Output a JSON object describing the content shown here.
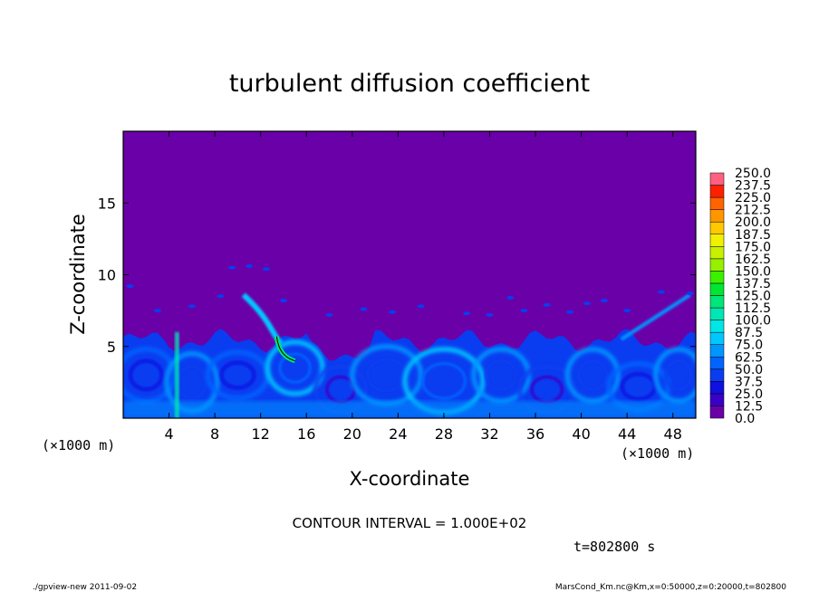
{
  "chart_data": {
    "type": "heatmap",
    "title": "turbulent diffusion coefficient",
    "xlabel": "X-coordinate",
    "ylabel": "Z-coordinate",
    "x_unit_label": "(×1000 m)",
    "y_unit_label": "(×1000 m)",
    "xlim": [
      0,
      50
    ],
    "ylim": [
      0,
      20
    ],
    "x_ticks": [
      4,
      8,
      12,
      16,
      20,
      24,
      28,
      32,
      36,
      40,
      44,
      48
    ],
    "y_ticks": [
      5,
      10,
      15
    ],
    "grid": false,
    "colorbar": {
      "levels": [
        "0.0",
        "12.5",
        "25.0",
        "37.5",
        "50.0",
        "62.5",
        "75.0",
        "87.5",
        "100.0",
        "112.5",
        "125.0",
        "137.5",
        "150.0",
        "162.5",
        "175.0",
        "187.5",
        "200.0",
        "212.5",
        "225.0",
        "237.5",
        "250.0"
      ],
      "colors": [
        "#6a00a8",
        "#3a00c8",
        "#1010e0",
        "#0a3cf0",
        "#0064ff",
        "#0096ff",
        "#00c8ff",
        "#00e6e6",
        "#00e6b4",
        "#00e678",
        "#00e632",
        "#3cf000",
        "#96f000",
        "#c8f000",
        "#f0f000",
        "#ffc800",
        "#ff9600",
        "#ff6400",
        "#ff2000",
        "#ff6080"
      ],
      "placement": "right"
    },
    "background_color": "#6a00a8",
    "boundary_layer_top_km": 6,
    "field_regions": [
      {
        "x_km": [
          0,
          50
        ],
        "z_km": [
          0,
          6
        ],
        "value_range": [
          12.5,
          75.0
        ],
        "description": "turbulent mixed layer"
      },
      {
        "x_km": [
          13.2,
          15.2
        ],
        "z_km": [
          4,
          5.8
        ],
        "value_range": [
          75.0,
          125.0
        ],
        "description": "local maximum"
      }
    ],
    "annotations": {
      "contour_interval": "CONTOUR INTERVAL = 1.000E+02",
      "time": "t=802800 s"
    }
  },
  "footer": {
    "left": "./gpview-new  2011-09-02",
    "right": "MarsCond_Km.nc@Km,x=0:50000,z=0:20000,t=802800"
  }
}
